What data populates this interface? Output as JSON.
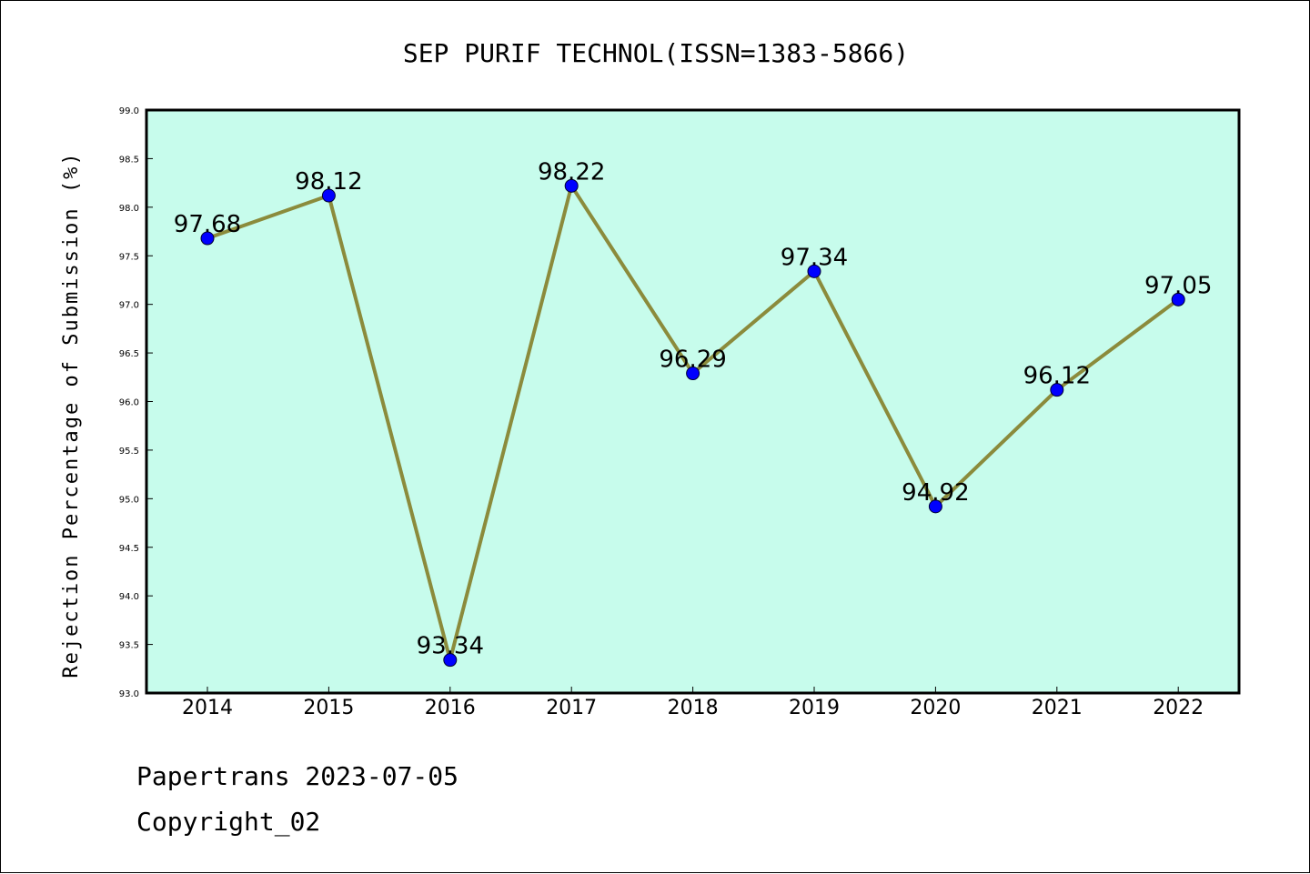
{
  "chart_data": {
    "type": "line",
    "title": "SEP PURIF TECHNOL(ISSN=1383-5866)",
    "xlabel": "",
    "ylabel": "Rejection Percentage of Submission (%)",
    "categories": [
      "2014",
      "2015",
      "2016",
      "2017",
      "2018",
      "2019",
      "2020",
      "2021",
      "2022"
    ],
    "series": [
      {
        "values": [
          97.68,
          98.12,
          93.34,
          98.22,
          96.29,
          97.34,
          94.92,
          96.12,
          97.05
        ]
      }
    ],
    "data_labels": [
      "97.68",
      "98.12",
      "93.34",
      "98.22",
      "96.29",
      "97.34",
      "94.92",
      "96.12",
      "97.05"
    ],
    "ylim": [
      93.0,
      99.0
    ],
    "yticks": [
      "93.0",
      "93.5",
      "94.0",
      "94.5",
      "95.0",
      "95.5",
      "96.0",
      "96.5",
      "97.0",
      "97.5",
      "98.0",
      "98.5",
      "99.0"
    ],
    "grid": false,
    "colors": {
      "plot_background": "#c7fcec",
      "line": "#8b8b3c",
      "marker": "#0000ff"
    }
  },
  "footer": {
    "line1": "Papertrans 2023-07-05",
    "line2": "Copyright_02"
  }
}
